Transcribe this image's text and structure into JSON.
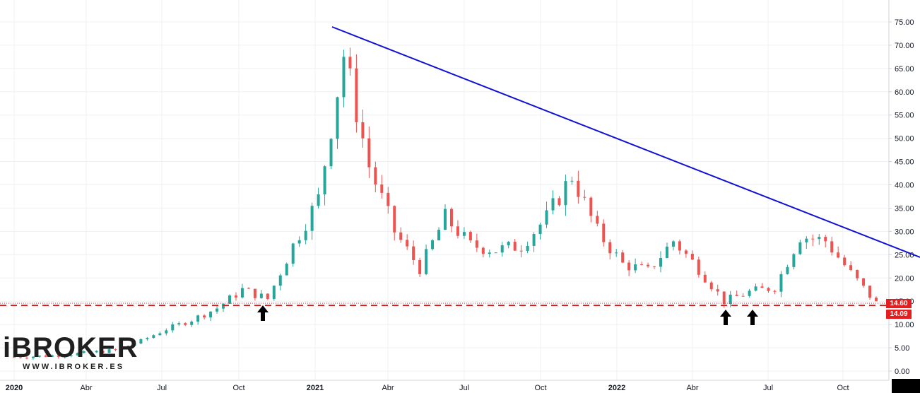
{
  "chart_data": {
    "type": "candlestick",
    "title": "",
    "xlabel": "",
    "ylabel": "",
    "ylim": [
      -1,
      76
    ],
    "y_ticks": [
      "75.00",
      "70.00",
      "65.00",
      "60.00",
      "55.00",
      "50.00",
      "45.00",
      "40.00",
      "35.00",
      "30.00",
      "25.00",
      "20.00",
      "15.00",
      "10.00",
      "5.00",
      "0.00"
    ],
    "x_ticks": [
      "2020",
      "Abr",
      "Jul",
      "Oct",
      "2021",
      "Abr",
      "Jul",
      "Oct",
      "2022",
      "Abr",
      "Jul",
      "Oct"
    ],
    "x_ticks_bold": [
      "2020",
      "2021",
      "2022"
    ],
    "approx_close_series": {
      "x": [
        "2020-01",
        "2020-02",
        "2020-03",
        "2020-04",
        "2020-05",
        "2020-06",
        "2020-07",
        "2020-08",
        "2020-09",
        "2020-10",
        "2020-11",
        "2020-12",
        "2021-01",
        "2021-02",
        "2021-03",
        "2021-04",
        "2021-05",
        "2021-06",
        "2021-07",
        "2021-08",
        "2021-09",
        "2021-10",
        "2021-11",
        "2021-12",
        "2022-01",
        "2022-02",
        "2022-03",
        "2022-04",
        "2022-05",
        "2022-06",
        "2022-07",
        "2022-08",
        "2022-09",
        "2022-10",
        "2022-11"
      ],
      "values": [
        3.0,
        3.2,
        3.5,
        4.0,
        4.5,
        6.5,
        9.0,
        11.0,
        13.5,
        17.5,
        15.5,
        27.0,
        37.0,
        68.0,
        44.0,
        30.0,
        22.0,
        33.0,
        27.0,
        26.0,
        27.0,
        33.0,
        42.0,
        30.0,
        23.0,
        21.5,
        28.0,
        22.0,
        15.0,
        17.0,
        18.0,
        29.0,
        28.0,
        21.0,
        14.6
      ]
    },
    "annotations": [
      {
        "type": "trendline",
        "label": "descending resistance",
        "from": {
          "date": "2021-01-15",
          "price": 73.8
        },
        "to": {
          "date": "2022-11-30",
          "price": 24.5
        },
        "color": "#1010d6"
      },
      {
        "type": "horizontal_dashed",
        "label": "support",
        "price": 14.09,
        "color": "#e41e1e"
      },
      {
        "type": "horizontal_dotted",
        "label": "last price",
        "price": 14.6,
        "color": "#e41e1e"
      },
      {
        "type": "arrow_up",
        "date": "2020-11-05",
        "price": 12.0
      },
      {
        "type": "arrow_up",
        "date": "2022-05-12",
        "price": 12.0
      },
      {
        "type": "arrow_up",
        "date": "2022-06-20",
        "price": 12.0
      }
    ],
    "price_labels": [
      {
        "value": "14.60",
        "color": "#e41e1e"
      },
      {
        "value": "14.09",
        "color": "#e41e1e"
      }
    ],
    "colors": {
      "up": "#26a69a",
      "down": "#ef5350",
      "trendline": "#1010d6",
      "support": "#e41e1e"
    },
    "grid": true,
    "legend": null
  },
  "logo": {
    "name": "iBROKER",
    "url_text": "WWW.IBROKER.ES"
  }
}
